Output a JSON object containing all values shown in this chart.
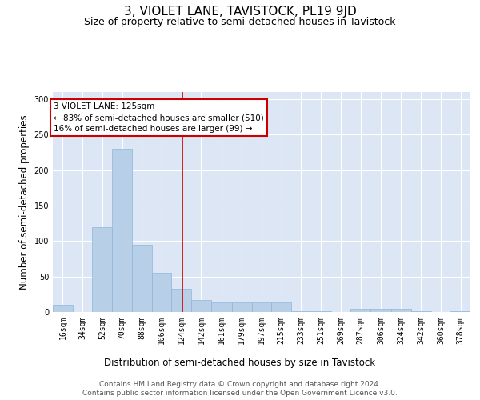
{
  "title": "3, VIOLET LANE, TAVISTOCK, PL19 9JD",
  "subtitle": "Size of property relative to semi-detached houses in Tavistock",
  "xlabel": "Distribution of semi-detached houses by size in Tavistock",
  "ylabel": "Number of semi-detached properties",
  "bar_color": "#b8cfe8",
  "bar_edge_color": "#90b4d8",
  "background_color": "#dce6f5",
  "grid_color": "#ffffff",
  "annotation_box_color": "#cc0000",
  "vline_color": "#cc0000",
  "vline_x": 125,
  "categories": [
    "16sqm",
    "34sqm",
    "52sqm",
    "70sqm",
    "88sqm",
    "106sqm",
    "124sqm",
    "142sqm",
    "161sqm",
    "179sqm",
    "197sqm",
    "215sqm",
    "233sqm",
    "251sqm",
    "269sqm",
    "287sqm",
    "306sqm",
    "324sqm",
    "342sqm",
    "360sqm",
    "378sqm"
  ],
  "bin_edges": [
    7,
    25,
    43,
    61,
    79,
    97,
    115,
    133,
    151,
    170,
    188,
    206,
    224,
    242,
    260,
    278,
    296,
    315,
    333,
    351,
    369,
    387
  ],
  "values": [
    10,
    0,
    120,
    230,
    95,
    55,
    33,
    17,
    14,
    14,
    14,
    13,
    1,
    1,
    0,
    4,
    4,
    4,
    1,
    0,
    1
  ],
  "ylim": [
    0,
    310
  ],
  "yticks": [
    0,
    50,
    100,
    150,
    200,
    250,
    300
  ],
  "annotation_title": "3 VIOLET LANE: 125sqm",
  "annotation_line1": "← 83% of semi-detached houses are smaller (510)",
  "annotation_line2": "16% of semi-detached houses are larger (99) →",
  "footer_line1": "Contains HM Land Registry data © Crown copyright and database right 2024.",
  "footer_line2": "Contains public sector information licensed under the Open Government Licence v3.0.",
  "title_fontsize": 11,
  "subtitle_fontsize": 9,
  "axis_label_fontsize": 8.5,
  "tick_fontsize": 7,
  "footer_fontsize": 6.5,
  "annotation_fontsize": 7.5
}
